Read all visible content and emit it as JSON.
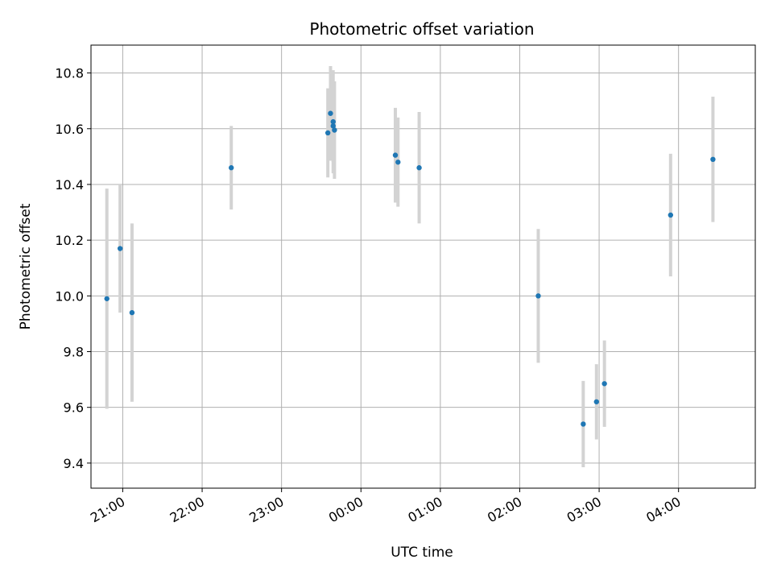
{
  "chart_data": {
    "type": "scatter",
    "title": "Photometric offset variation",
    "xlabel": "UTC time",
    "ylabel": "Photometric offset",
    "x_tick_labels": [
      "21:00",
      "22:00",
      "23:00",
      "00:00",
      "01:00",
      "02:00",
      "03:00",
      "04:00"
    ],
    "x_ticks": [
      "21:00",
      "22:00",
      "23:00",
      "24:00",
      "25:00",
      "26:00",
      "27:00",
      "28:00"
    ],
    "y_ticks": [
      9.4,
      9.6,
      9.8,
      10.0,
      10.2,
      10.4,
      10.6,
      10.8
    ],
    "xlim": [
      "20:36",
      "28:58"
    ],
    "ylim": [
      9.31,
      10.9
    ],
    "grid": true,
    "marker_color": "#1f77b4",
    "errorbar_color": "#d3d3d3",
    "points": [
      {
        "x": "20:48",
        "y": 9.99,
        "err": 0.395
      },
      {
        "x": "20:58",
        "y": 10.17,
        "err": 0.23
      },
      {
        "x": "21:07",
        "y": 9.94,
        "err": 0.32
      },
      {
        "x": "22:22",
        "y": 10.46,
        "err": 0.15
      },
      {
        "x": "23:35",
        "y": 10.585,
        "err": 0.16
      },
      {
        "x": "23:37",
        "y": 10.655,
        "err": 0.17
      },
      {
        "x": "23:39",
        "y": 10.625,
        "err": 0.185
      },
      {
        "x": "23:39",
        "y": 10.61,
        "err": 0.13
      },
      {
        "x": "23:40",
        "y": 10.595,
        "err": 0.175
      },
      {
        "x": "24:26",
        "y": 10.505,
        "err": 0.17
      },
      {
        "x": "24:28",
        "y": 10.48,
        "err": 0.16
      },
      {
        "x": "24:44",
        "y": 10.46,
        "err": 0.2
      },
      {
        "x": "26:14",
        "y": 10.0,
        "err": 0.24
      },
      {
        "x": "26:48",
        "y": 9.54,
        "err": 0.155
      },
      {
        "x": "26:58",
        "y": 9.62,
        "err": 0.135
      },
      {
        "x": "27:04",
        "y": 9.685,
        "err": 0.155
      },
      {
        "x": "27:54",
        "y": 10.29,
        "err": 0.22
      },
      {
        "x": "28:26",
        "y": 10.49,
        "err": 0.225
      }
    ]
  }
}
